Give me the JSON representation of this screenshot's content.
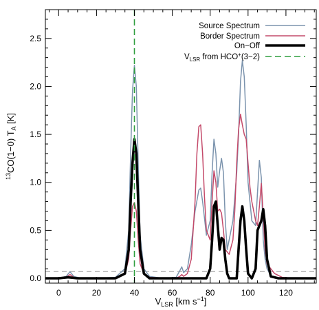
{
  "chart_data": {
    "type": "line",
    "xlabel": {
      "main": "V",
      "sub": "LSR",
      "units_pre": "  [km s",
      "units_sup": "−1",
      "units_post": "]"
    },
    "ylabel": {
      "sup": "13",
      "main": "CO(1−0)  T",
      "sub": "A",
      "units": "  [K]"
    },
    "xlim": [
      -7,
      136
    ],
    "ylim": [
      -0.05,
      2.8
    ],
    "xticks": [
      0,
      20,
      40,
      60,
      80,
      100,
      120
    ],
    "xtick_labels": [
      "0",
      "20",
      "40",
      "60",
      "80",
      "100",
      "120"
    ],
    "yticks": [
      0.0,
      0.5,
      1.0,
      1.5,
      2.0,
      2.5
    ],
    "ytick_labels": [
      "0.0",
      "0.5",
      "1.0",
      "1.5",
      "2.0",
      "2.5"
    ],
    "legend_position": "top-right",
    "threshold": {
      "y": 0.07,
      "color": "#aaaaaa"
    },
    "vline": {
      "x": 40,
      "name": "V",
      "name_sub": "LSR",
      "name_mid": " from HCO",
      "name_sup": "+",
      "name_post": "(3−2)",
      "color": "#2e9e3e"
    },
    "series": [
      {
        "name": "Source Spectrum",
        "color": "#7b93ad",
        "x": [
          -7,
          0,
          4,
          6,
          8,
          12,
          20,
          30,
          35,
          37,
          38,
          39,
          40,
          41,
          42,
          43,
          45,
          48,
          55,
          62,
          64,
          65,
          66,
          68,
          70,
          72,
          74,
          75,
          76,
          78,
          80,
          81,
          82,
          83,
          84,
          85,
          86,
          87,
          88,
          89,
          90,
          92,
          94,
          95,
          96,
          97,
          98,
          99,
          100,
          102,
          104,
          105,
          106,
          107,
          108,
          109,
          110,
          112,
          116,
          125,
          136
        ],
        "y": [
          0.0,
          0.0,
          0.02,
          0.07,
          0.02,
          0.0,
          0.0,
          0.01,
          0.1,
          0.5,
          1.3,
          1.95,
          2.22,
          2.0,
          1.2,
          0.45,
          0.1,
          0.02,
          0.0,
          0.01,
          0.08,
          0.12,
          0.06,
          0.1,
          0.35,
          0.7,
          0.92,
          0.94,
          0.8,
          0.45,
          0.6,
          1.1,
          1.45,
          1.3,
          0.95,
          1.12,
          1.25,
          1.1,
          0.6,
          0.3,
          0.4,
          0.6,
          1.1,
          1.5,
          2.05,
          2.27,
          2.1,
          1.6,
          1.0,
          0.6,
          0.55,
          0.9,
          1.23,
          1.05,
          0.4,
          0.2,
          0.1,
          0.03,
          0.0,
          0.0,
          0.0
        ]
      },
      {
        "name": "Border Spectrum",
        "color": "#c44a6a",
        "x": [
          -7,
          0,
          4,
          6,
          8,
          12,
          20,
          30,
          35,
          37,
          38,
          39,
          40,
          41,
          42,
          43,
          45,
          48,
          55,
          62,
          64,
          65,
          66,
          68,
          70,
          72,
          73,
          74,
          75,
          76,
          77,
          78,
          80,
          81,
          82,
          83,
          84,
          85,
          86,
          87,
          88,
          90,
          92,
          93,
          94,
          95,
          96,
          97,
          98,
          99,
          100,
          101,
          102,
          104,
          105,
          106,
          107,
          108,
          109,
          110,
          112,
          114,
          118,
          125,
          136
        ],
        "y": [
          0.0,
          0.0,
          0.01,
          0.04,
          0.01,
          0.0,
          0.0,
          0.0,
          0.05,
          0.2,
          0.5,
          0.75,
          0.79,
          0.7,
          0.4,
          0.15,
          0.05,
          0.01,
          0.0,
          0.0,
          0.02,
          0.04,
          0.02,
          0.05,
          0.2,
          0.8,
          1.3,
          1.58,
          1.6,
          1.3,
          0.85,
          0.5,
          0.4,
          0.8,
          1.12,
          1.0,
          0.7,
          0.72,
          0.68,
          0.5,
          0.3,
          0.25,
          0.4,
          0.7,
          1.2,
          1.55,
          1.71,
          1.6,
          1.5,
          1.45,
          1.2,
          0.95,
          0.8,
          0.6,
          0.55,
          0.75,
          0.99,
          0.65,
          0.3,
          0.15,
          0.1,
          0.05,
          0.01,
          0.0,
          0.0
        ]
      },
      {
        "name": "On−Off",
        "color": "#000000",
        "x": [
          -7,
          0,
          5,
          10,
          20,
          30,
          35,
          37,
          38,
          39,
          40,
          41,
          42,
          43,
          45,
          48,
          55,
          62,
          65,
          70,
          75,
          78,
          80,
          81,
          82,
          83,
          84,
          85,
          86,
          87,
          88,
          89,
          90,
          92,
          94,
          95,
          96,
          97,
          98,
          99,
          100,
          102,
          104,
          105,
          106,
          107,
          108,
          109,
          110,
          112,
          116,
          125,
          136
        ],
        "y": [
          0.0,
          0.0,
          0.01,
          0.0,
          0.0,
          0.0,
          0.05,
          0.3,
          0.8,
          1.2,
          1.45,
          1.3,
          0.8,
          0.3,
          0.05,
          0.0,
          0.0,
          0.0,
          0.0,
          0.0,
          0.0,
          0.0,
          0.1,
          0.4,
          0.75,
          0.8,
          0.55,
          0.3,
          0.42,
          0.4,
          0.2,
          0.05,
          0.0,
          0.0,
          0.0,
          0.3,
          0.6,
          0.75,
          0.6,
          0.3,
          0.05,
          0.0,
          0.1,
          0.5,
          0.55,
          0.6,
          0.72,
          0.55,
          0.2,
          0.02,
          0.0,
          0.0,
          0.0
        ]
      }
    ]
  }
}
